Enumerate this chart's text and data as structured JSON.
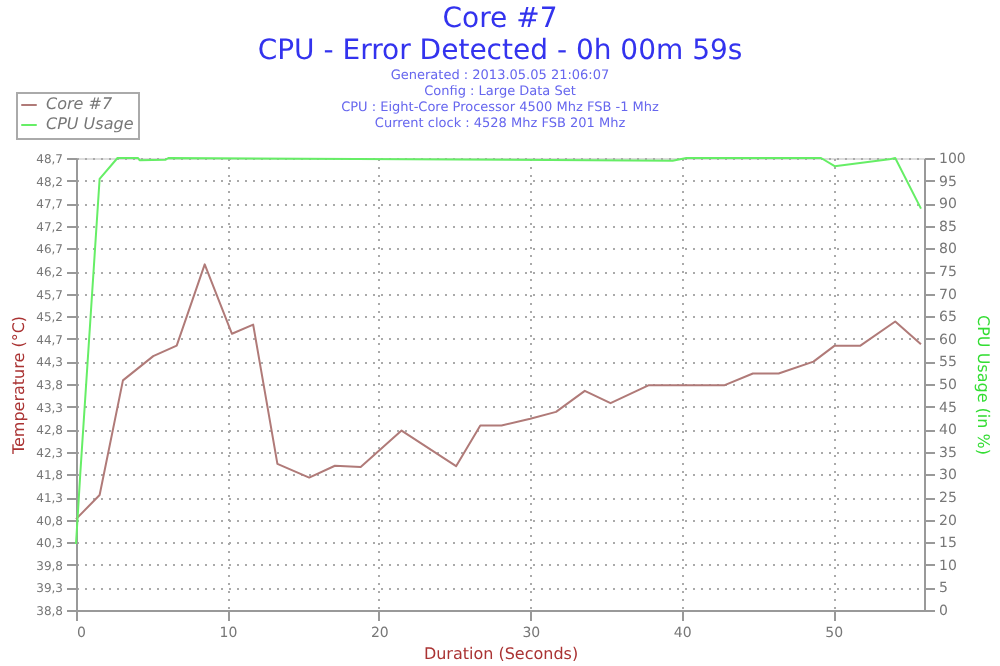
{
  "chart_data": {
    "type": "line",
    "title": [
      "Core #7",
      "CPU - Error Detected - 0h 00m 59s"
    ],
    "subtitle": [
      "Generated : 2013.05.05 21:06:07",
      "Config : Large Data Set",
      "CPU : Eight-Core Processor 4500 Mhz FSB -1 Mhz",
      "Current clock : 4528 Mhz FSB 201 Mhz"
    ],
    "xlabel": "Duration (Seconds)",
    "ylabel": "Temperature (°C)",
    "y2label": "CPU Usage (in %)",
    "xlim": [
      0,
      56
    ],
    "xticks": [
      0,
      10,
      20,
      30,
      40,
      50
    ],
    "ylim": [
      38.8,
      48.7
    ],
    "yticks": [
      {
        "value": 38.8,
        "label": "38,8"
      },
      {
        "value": 39.295,
        "label": "39,3"
      },
      {
        "value": 39.79,
        "label": "39,8"
      },
      {
        "value": 40.285,
        "label": "40,3"
      },
      {
        "value": 40.78,
        "label": "40,8"
      },
      {
        "value": 41.275,
        "label": "41,3"
      },
      {
        "value": 41.77,
        "label": "41,8"
      },
      {
        "value": 42.265,
        "label": "42,3"
      },
      {
        "value": 42.76,
        "label": "42,8"
      },
      {
        "value": 43.255,
        "label": "43,3"
      },
      {
        "value": 43.75,
        "label": "43,8"
      },
      {
        "value": 44.25,
        "label": "44,3"
      },
      {
        "value": 44.74,
        "label": "44,7"
      },
      {
        "value": 45.235,
        "label": "45,2"
      },
      {
        "value": 45.73,
        "label": "45,7"
      },
      {
        "value": 46.225,
        "label": "46,2"
      },
      {
        "value": 46.72,
        "label": "46,7"
      },
      {
        "value": 47.215,
        "label": "47,2"
      },
      {
        "value": 47.71,
        "label": "47,7"
      },
      {
        "value": 48.205,
        "label": "48,2"
      },
      {
        "value": 48.7,
        "label": "48,7"
      }
    ],
    "y2lim": [
      0,
      100
    ],
    "y2ticks": [
      0,
      5,
      10,
      15,
      20,
      25,
      30,
      35,
      40,
      45,
      50,
      55,
      60,
      65,
      70,
      75,
      80,
      85,
      90,
      95,
      100
    ],
    "grid": true,
    "legend": "top left",
    "marker": "none",
    "line_style": "solid",
    "series": [
      {
        "name": "Core #7",
        "color": "#b07a78",
        "x": [
          0,
          1.56,
          3.1,
          5.1,
          6.65,
          8.5,
          10.3,
          11.7,
          13.3,
          15.4,
          17.1,
          18.8,
          21.5,
          25.1,
          26.7,
          28.1,
          30,
          31.7,
          33.6,
          35.3,
          37.8,
          41.4,
          42.8,
          44.7,
          46.4,
          48.7,
          50.1,
          51.8,
          54.1,
          55.8
        ],
        "values": [
          40.79,
          41.32,
          43.83,
          44.36,
          44.59,
          46.37,
          44.85,
          45.05,
          42.0,
          41.7,
          41.96,
          41.93,
          42.73,
          41.95,
          42.84,
          42.84,
          42.99,
          43.14,
          43.6,
          43.33,
          43.72,
          43.72,
          43.72,
          43.98,
          43.98,
          44.24,
          44.59,
          44.59,
          45.12,
          44.62
        ]
      },
      {
        "name": "CPU Usage",
        "color": "#66ee66",
        "axis": "y2",
        "x": [
          0,
          0.28,
          1.56,
          2.74,
          4.1,
          4.2,
          5.9,
          6.1,
          39.4,
          40.3,
          49.2,
          50.1,
          53.7,
          54.1,
          55.8
        ],
        "values": [
          14.6,
          30,
          95.4,
          100,
          100,
          99.5,
          99.6,
          100,
          99.4,
          100,
          100,
          98.2,
          99.7,
          100,
          88.8
        ]
      }
    ]
  }
}
